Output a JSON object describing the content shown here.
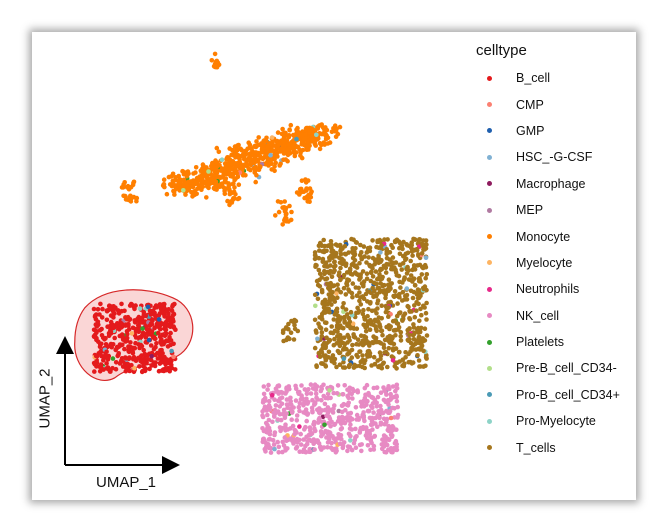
{
  "chart_data": {
    "type": "scatter",
    "xlabel": "UMAP_1",
    "ylabel": "UMAP_2",
    "legend": {
      "title": "celltype",
      "placement": "right"
    },
    "grid": false,
    "categories": [
      {
        "name": "B_cell",
        "color": "#e41a1c"
      },
      {
        "name": "CMP",
        "color": "#fb8072"
      },
      {
        "name": "GMP",
        "color": "#1f5fae"
      },
      {
        "name": "HSC_-G-CSF",
        "color": "#80b1d3"
      },
      {
        "name": "Macrophage",
        "color": "#8e1b5e"
      },
      {
        "name": "MEP",
        "color": "#b07aa1"
      },
      {
        "name": "Monocyte",
        "color": "#ff7f00"
      },
      {
        "name": "Myelocyte",
        "color": "#fdb462"
      },
      {
        "name": "Neutrophils",
        "color": "#e7298a"
      },
      {
        "name": "NK_cell",
        "color": "#e78ac3"
      },
      {
        "name": "Platelets",
        "color": "#33a02c"
      },
      {
        "name": "Pre-B_cell_CD34-",
        "color": "#b2df8a"
      },
      {
        "name": "Pro-B_cell_CD34+",
        "color": "#4a9ab5"
      },
      {
        "name": "Pro-Myelocyte",
        "color": "#8dd3c7"
      },
      {
        "name": "T_cells",
        "color": "#a6761d"
      }
    ],
    "clusters": [
      {
        "celltype": "B_cell",
        "umap_1": -5.6,
        "umap_2": -4.1,
        "spread": [
          2.4,
          1.9
        ],
        "n": 500,
        "highlighted": true
      },
      {
        "celltype": "Monocyte",
        "umap_1": 1.2,
        "umap_2": 5.8,
        "spread": [
          4.5,
          1.4
        ],
        "n": 700
      },
      {
        "celltype": "T_cells",
        "umap_1": 8.3,
        "umap_2": -2.2,
        "spread": [
          3.3,
          3.6
        ],
        "n": 900
      },
      {
        "celltype": "NK_cell",
        "umap_1": 5.9,
        "umap_2": -8.6,
        "spread": [
          4.0,
          1.9
        ],
        "n": 600
      }
    ]
  }
}
